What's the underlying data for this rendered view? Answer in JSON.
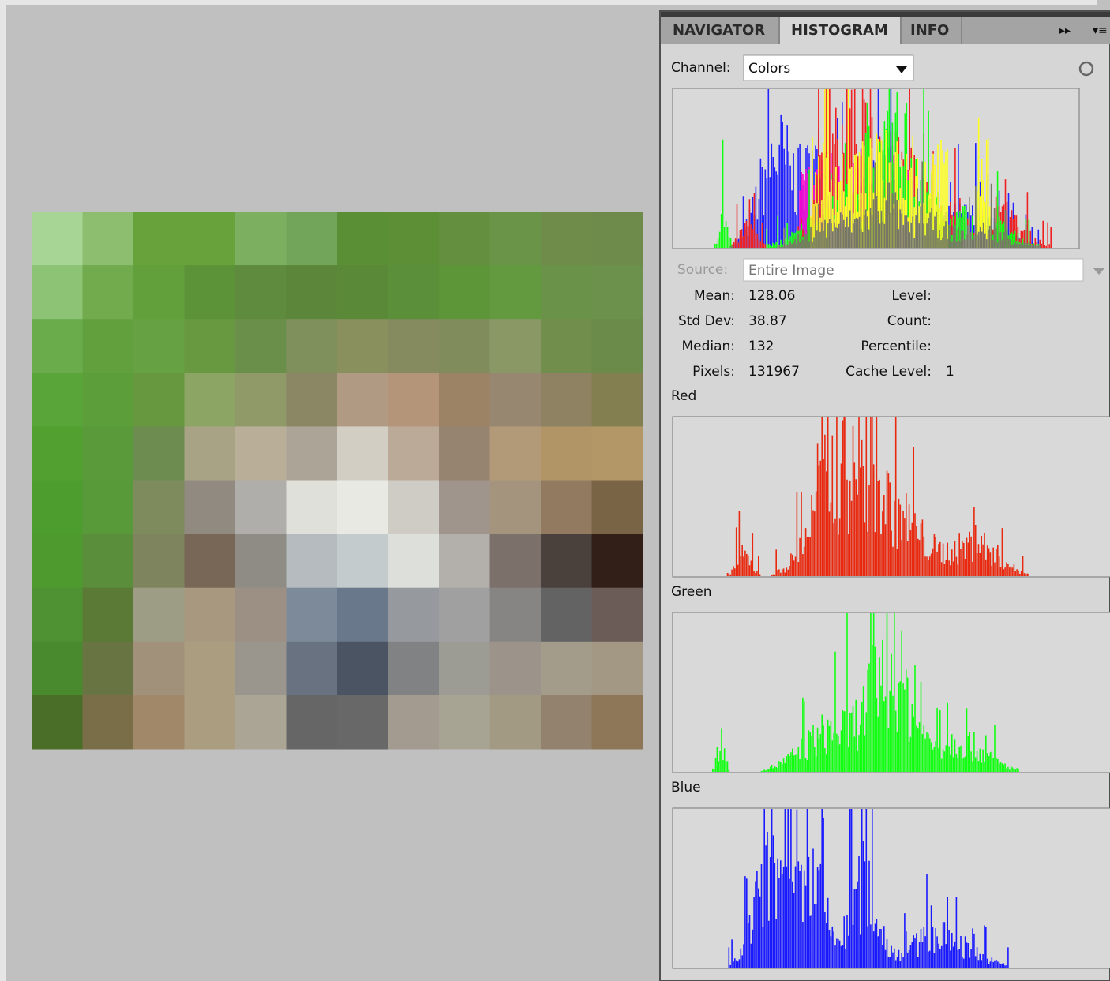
{
  "tabs": [
    "NAVIGATOR",
    "HISTOGRAM",
    "INFO"
  ],
  "channel": {
    "label": "Channel:",
    "value": "Colors"
  },
  "source": {
    "label": "Source:",
    "value": "Entire Image"
  },
  "stats": {
    "left": [
      {
        "label": "Mean:",
        "value": 128.06
      },
      {
        "label": "Std Dev:",
        "value": 38.87
      },
      {
        "label": "Median:",
        "value": 132
      },
      {
        "label": "Pixels:",
        "value": 131967
      }
    ],
    "right": [
      {
        "label": "Level:"
      },
      {
        "label": "Count:"
      },
      {
        "label": "Percentile:"
      },
      {
        "label": "Cache Level:",
        "value": 1
      }
    ]
  },
  "channels": [
    "Red",
    "Green",
    "Blue"
  ]
}
